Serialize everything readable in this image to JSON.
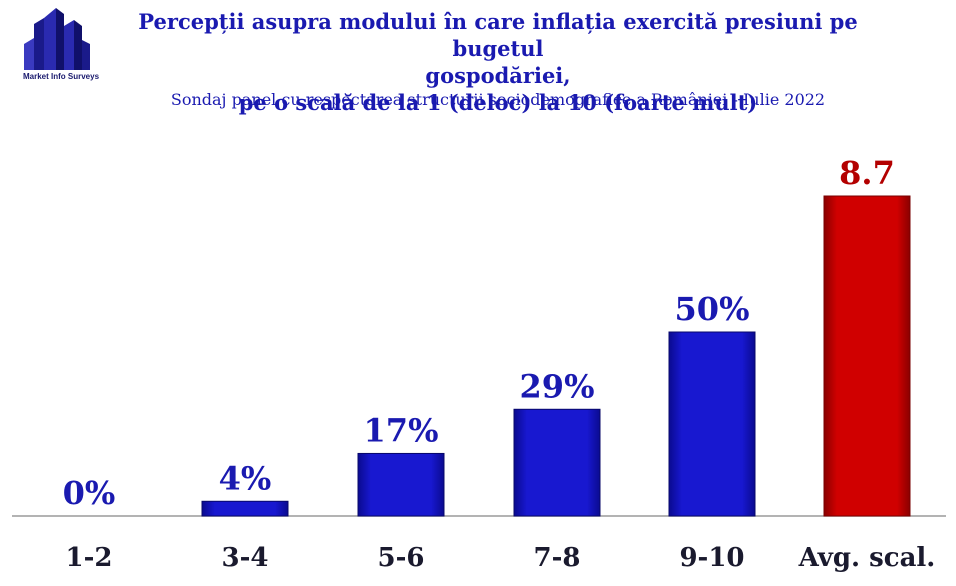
{
  "logo": {
    "text": "Market Info Surveys"
  },
  "colors": {
    "blue_bar": "#1414c8",
    "red_bar": "#cc0000",
    "blue_text": "#1a1ab0",
    "red_text": "#b30000"
  },
  "chart_data": {
    "type": "bar",
    "title_lines": [
      "Percepții asupra modului în care inflația exercită presiuni pe bugetul",
      "gospodăriei,",
      "pe o scală de la 1 (deloc) la 10 (foarte mult)"
    ],
    "subtitle": "Sondaj panel cu respectarea structurii sociodemografice a României - Iulie 2022",
    "categories": [
      "1-2",
      "3-4",
      "5-6",
      "7-8",
      "9-10",
      "Avg. scal."
    ],
    "values": [
      0,
      4,
      17,
      29,
      50,
      8.7
    ],
    "value_labels": [
      "0%",
      "4%",
      "17%",
      "29%",
      "50%",
      "8.7"
    ],
    "value_units": [
      "percent",
      "percent",
      "percent",
      "percent",
      "percent",
      "scale 1-10"
    ],
    "ylim_percent": [
      0,
      50
    ],
    "ylim_scale": [
      0,
      10
    ],
    "grid": false,
    "legend": "none"
  }
}
